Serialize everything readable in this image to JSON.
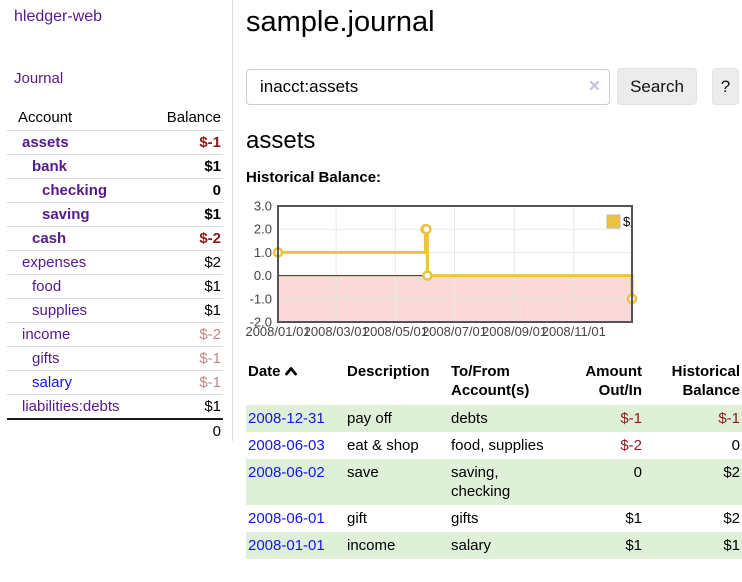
{
  "colors": {
    "link_purple": "#551A8B",
    "link_blue": "#1414E6",
    "negative_strong": "#8B1A1A",
    "negative_muted": "#BB8888",
    "row_stripe_green": "#DFF0D8",
    "series_gold": "#EDC240",
    "chart_negative_fill": "#FBD9D9",
    "chart_zero_line": "#8B0000",
    "chart_border": "#545454",
    "chart_grid": "#E8E8E8",
    "axis_text": "#444444"
  },
  "sidebar": {
    "app_title": "hledger-web",
    "nav_journal": "Journal",
    "accounts_table": {
      "headers": {
        "account": "Account",
        "balance": "Balance"
      },
      "rows": [
        {
          "account": "assets",
          "depth": 1,
          "in_query": true,
          "visited": true,
          "balance": "$-1"
        },
        {
          "account": "bank",
          "depth": 2,
          "in_query": true,
          "visited": true,
          "balance": "$1"
        },
        {
          "account": "checking",
          "depth": 3,
          "in_query": true,
          "visited": true,
          "balance": "0"
        },
        {
          "account": "saving",
          "depth": 3,
          "in_query": true,
          "visited": true,
          "balance": "$1"
        },
        {
          "account": "cash",
          "depth": 2,
          "in_query": true,
          "visited": true,
          "balance": "$-2"
        },
        {
          "account": "expenses",
          "depth": 1,
          "in_query": false,
          "visited": true,
          "balance": "$2"
        },
        {
          "account": "food",
          "depth": 2,
          "in_query": false,
          "visited": true,
          "balance": "$1"
        },
        {
          "account": "supplies",
          "depth": 2,
          "in_query": false,
          "visited": true,
          "balance": "$1"
        },
        {
          "account": "income",
          "depth": 1,
          "in_query": false,
          "visited": true,
          "balance": "$-2"
        },
        {
          "account": "gifts",
          "depth": 2,
          "in_query": false,
          "visited": true,
          "balance": "$-1"
        },
        {
          "account": "salary",
          "depth": 2,
          "in_query": false,
          "visited": false,
          "balance": "$-1"
        },
        {
          "account": "liabilities:debts",
          "depth": 1,
          "in_query": false,
          "visited": true,
          "balance": "$1"
        }
      ],
      "total": "0"
    }
  },
  "main": {
    "journal_title": "sample.journal",
    "search": {
      "value": "inacct:assets",
      "clear_icon": "×",
      "search_button": "Search",
      "help_button": "?"
    },
    "account_heading": "assets",
    "chart_heading": "Historical Balance:",
    "register": {
      "headers": {
        "date": "Date",
        "description": "Description",
        "accounts": "To/From Account(s)",
        "amount": "Amount Out/In",
        "balance": "Historical Balance"
      },
      "rows": [
        {
          "date": "2008-12-31",
          "description": "pay off",
          "accounts": "debts",
          "amount": "$-1",
          "balance": "$-1"
        },
        {
          "date": "2008-06-03",
          "description": "eat & shop",
          "accounts": "food, supplies",
          "amount": "$-2",
          "balance": "0"
        },
        {
          "date": "2008-06-02",
          "description": "save",
          "accounts": "saving,\nchecking",
          "amount": "0",
          "balance": "$2"
        },
        {
          "date": "2008-06-01",
          "description": "gift",
          "accounts": "gifts",
          "amount": "$1",
          "balance": "$2"
        },
        {
          "date": "2008-01-01",
          "description": "income",
          "accounts": "salary",
          "amount": "$1",
          "balance": "$1"
        }
      ]
    }
  },
  "chart_data": {
    "type": "line",
    "step": true,
    "title": "Historical Balance",
    "legend": "$",
    "legend_position": "top-right",
    "x_range": [
      "2008-01-01",
      "2008-12-31"
    ],
    "ylim": [
      -2,
      3
    ],
    "y_ticks": [
      "3.0",
      "2.0",
      "1.0",
      "0.0",
      "-1.0",
      "-2.0"
    ],
    "x_ticks": [
      "2008/01/01",
      "2008/03/01",
      "2008/05/01",
      "2008/07/01",
      "2008/09/01",
      "2008/11/01"
    ],
    "grid": true,
    "series": [
      {
        "name": "$",
        "points": [
          [
            "2008-01-01",
            1
          ],
          [
            "2008-06-01",
            2
          ],
          [
            "2008-06-02",
            2
          ],
          [
            "2008-06-03",
            0
          ],
          [
            "2008-12-31",
            -1
          ]
        ]
      }
    ]
  }
}
